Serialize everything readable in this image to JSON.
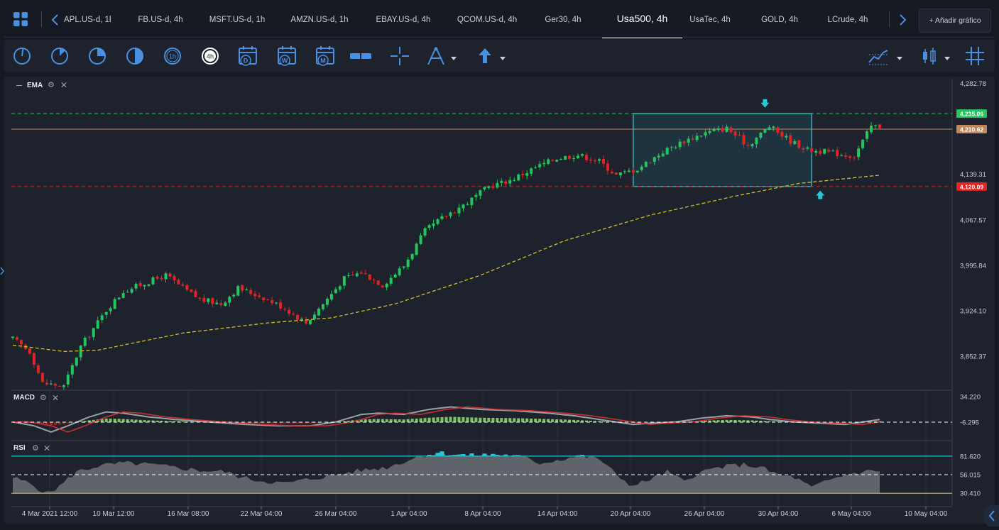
{
  "tabs": [
    {
      "label": "APL.US-d, 1h",
      "active": false
    },
    {
      "label": "FB.US-d, 4h",
      "active": false
    },
    {
      "label": "MSFT.US-d, 1h",
      "active": false
    },
    {
      "label": "AMZN.US-d, 1h",
      "active": false
    },
    {
      "label": "EBAY.US-d, 4h",
      "active": false
    },
    {
      "label": "QCOM.US-d, 4h",
      "active": false
    },
    {
      "label": "Ger30, 4h",
      "active": false
    },
    {
      "label": "Usa500, 4h",
      "active": true
    },
    {
      "label": "UsaTec, 4h",
      "active": false
    },
    {
      "label": "GOLD, 4h",
      "active": false
    },
    {
      "label": "LCrude, 4h",
      "active": false
    }
  ],
  "add_chart_label": "+ Añadir gráfico",
  "toolbar": {
    "timeframe_tools": [
      "1m-icon",
      "5m-icon",
      "15m-icon",
      "30m-icon",
      "1h",
      "4h"
    ],
    "period_tools": [
      "D",
      "W",
      "M"
    ],
    "active_timeframe": "4h"
  },
  "colors": {
    "bull": "#22c55e",
    "bear": "#e02424",
    "ema": "#d4c02a",
    "accent": "#4a90e2",
    "resistance": "#22c55e",
    "support": "#e02424",
    "current": "#c0885a",
    "box": "#2bb5c4",
    "macd_line": "#9aa0a8",
    "macd_signal": "#d03030",
    "rsi_fill": "#6b6e75",
    "rsi_over": "#27c8d4",
    "rsi_upper": "#27b4c8",
    "rsi_lower": "#c9a94a"
  },
  "chart_data": [
    {
      "type": "candlestick",
      "panel": "price",
      "indicator_label": "EMA",
      "ylim": [
        3800,
        4290
      ],
      "y_ticks": [
        {
          "value": 4282.78,
          "label": "4,282.78"
        },
        {
          "value": 4139.31,
          "label": "4,139.31"
        },
        {
          "value": 4067.57,
          "label": "4,067.57"
        },
        {
          "value": 3995.84,
          "label": "3,995.84"
        },
        {
          "value": 3924.1,
          "label": "3,924.10"
        },
        {
          "value": 3852.37,
          "label": "3,852.37"
        }
      ],
      "x_ticks": [
        "4 Mar 2021 12:00",
        "10 Mar 12:00",
        "16 Mar 08:00",
        "22 Mar 04:00",
        "26 Mar 04:00",
        "1 Apr 04:00",
        "8 Apr 04:00",
        "14 Apr 04:00",
        "20 Apr 04:00",
        "26 Apr 04:00",
        "30 Apr 04:00",
        "6 May 04:00",
        "10 May 04:00"
      ],
      "horizontal_lines": [
        {
          "value": 4235.06,
          "label": "4,235.06",
          "style": "dashed",
          "color": "#22c55e"
        },
        {
          "value": 4210.62,
          "label": "4,210.62",
          "style": "solid",
          "color": "#c0885a"
        },
        {
          "value": 4120.09,
          "label": "4,120.09",
          "style": "dashed",
          "color": "#e02424"
        }
      ],
      "close_anchors": [
        [
          0,
          3880
        ],
        [
          4,
          3860
        ],
        [
          7,
          3810
        ],
        [
          12,
          3805
        ],
        [
          16,
          3868
        ],
        [
          22,
          3925
        ],
        [
          26,
          3955
        ],
        [
          30,
          3965
        ],
        [
          36,
          3980
        ],
        [
          40,
          3960
        ],
        [
          44,
          3942
        ],
        [
          49,
          3935
        ],
        [
          53,
          3960
        ],
        [
          59,
          3945
        ],
        [
          64,
          3928
        ],
        [
          69,
          3905
        ],
        [
          73,
          3935
        ],
        [
          78,
          3975
        ],
        [
          82,
          3985
        ],
        [
          87,
          3965
        ],
        [
          92,
          3995
        ],
        [
          97,
          4050
        ],
        [
          102,
          4075
        ],
        [
          107,
          4095
        ],
        [
          112,
          4120
        ],
        [
          117,
          4130
        ],
        [
          123,
          4150
        ],
        [
          128,
          4165
        ],
        [
          133,
          4170
        ],
        [
          138,
          4160
        ],
        [
          142,
          4138
        ],
        [
          147,
          4148
        ],
        [
          153,
          4175
        ],
        [
          158,
          4192
        ],
        [
          163,
          4205
        ],
        [
          168,
          4212
        ],
        [
          173,
          4185
        ],
        [
          178,
          4215
        ],
        [
          183,
          4192
        ],
        [
          187,
          4178
        ],
        [
          191,
          4175
        ],
        [
          194,
          4172
        ],
        [
          198,
          4168
        ],
        [
          202,
          4215
        ]
      ],
      "ema_anchors": [
        [
          0,
          3870
        ],
        [
          12,
          3860
        ],
        [
          20,
          3862
        ],
        [
          40,
          3889
        ],
        [
          60,
          3905
        ],
        [
          75,
          3913
        ],
        [
          90,
          3935
        ],
        [
          110,
          3980
        ],
        [
          130,
          4035
        ],
        [
          150,
          4075
        ],
        [
          170,
          4105
        ],
        [
          185,
          4125
        ],
        [
          204,
          4138
        ]
      ],
      "box": {
        "start": 146,
        "end": 188,
        "top": 4235.06,
        "bottom": 4120.09
      },
      "markers": [
        {
          "type": "arrow-down",
          "index": 177,
          "value": 4250
        },
        {
          "type": "arrow-up",
          "index": 190,
          "value": 4108
        }
      ]
    },
    {
      "type": "line",
      "panel": "macd",
      "indicator_label": "MACD",
      "ylim": [
        -30,
        40
      ],
      "y_ticks": [
        {
          "value": 34.22,
          "label": "34.220"
        },
        {
          "value": -6.295,
          "label": "-6.295"
        }
      ],
      "zero_line": -6.295,
      "anchors": [
        [
          0,
          -6
        ],
        [
          5,
          -12
        ],
        [
          9,
          -22
        ],
        [
          13,
          -12
        ],
        [
          18,
          2
        ],
        [
          22,
          10
        ],
        [
          26,
          8
        ],
        [
          32,
          2
        ],
        [
          38,
          -2
        ],
        [
          46,
          -6
        ],
        [
          55,
          -10
        ],
        [
          62,
          -12
        ],
        [
          70,
          -12
        ],
        [
          76,
          -6
        ],
        [
          82,
          6
        ],
        [
          86,
          8
        ],
        [
          92,
          6
        ],
        [
          98,
          14
        ],
        [
          103,
          18
        ],
        [
          110,
          14
        ],
        [
          118,
          12
        ],
        [
          126,
          8
        ],
        [
          132,
          4
        ],
        [
          140,
          -4
        ],
        [
          146,
          -10
        ],
        [
          150,
          -8
        ],
        [
          156,
          -6
        ],
        [
          162,
          0
        ],
        [
          168,
          4
        ],
        [
          174,
          2
        ],
        [
          178,
          -2
        ],
        [
          184,
          -6
        ],
        [
          190,
          -8
        ],
        [
          196,
          -10
        ],
        [
          200,
          -6
        ],
        [
          204,
          -2
        ]
      ]
    },
    {
      "type": "area",
      "panel": "rsi",
      "indicator_label": "RSI",
      "ylim": [
        15,
        100
      ],
      "y_ticks": [
        {
          "value": 81.62,
          "label": "81.620"
        },
        {
          "value": 56.015,
          "label": "56.015"
        },
        {
          "value": 30.41,
          "label": "30.410"
        }
      ],
      "levels": {
        "upper": 81.62,
        "mid": 56.015,
        "lower": 30.41
      },
      "anchors": [
        [
          0,
          52
        ],
        [
          4,
          44
        ],
        [
          8,
          30
        ],
        [
          11,
          40
        ],
        [
          15,
          60
        ],
        [
          20,
          68
        ],
        [
          26,
          72
        ],
        [
          32,
          70
        ],
        [
          38,
          66
        ],
        [
          44,
          62
        ],
        [
          50,
          60
        ],
        [
          54,
          52
        ],
        [
          58,
          48
        ],
        [
          64,
          44
        ],
        [
          70,
          50
        ],
        [
          76,
          56
        ],
        [
          82,
          62
        ],
        [
          88,
          66
        ],
        [
          92,
          74
        ],
        [
          96,
          82
        ],
        [
          100,
          86
        ],
        [
          104,
          84
        ],
        [
          108,
          82
        ],
        [
          114,
          84
        ],
        [
          120,
          80
        ],
        [
          124,
          72
        ],
        [
          128,
          76
        ],
        [
          133,
          82
        ],
        [
          138,
          78
        ],
        [
          142,
          56
        ],
        [
          146,
          40
        ],
        [
          150,
          50
        ],
        [
          154,
          60
        ],
        [
          158,
          46
        ],
        [
          161,
          58
        ],
        [
          166,
          66
        ],
        [
          172,
          70
        ],
        [
          176,
          66
        ],
        [
          180,
          56
        ],
        [
          184,
          52
        ],
        [
          188,
          38
        ],
        [
          192,
          48
        ],
        [
          196,
          56
        ],
        [
          200,
          60
        ],
        [
          204,
          62
        ]
      ]
    }
  ]
}
